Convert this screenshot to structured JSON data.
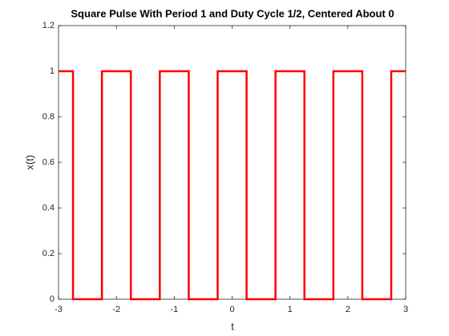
{
  "chart_data": {
    "type": "line",
    "title": "Square Pulse With Period 1 and Duty Cycle 1/2, Centered About 0",
    "x_label": "t",
    "y_label": "x(t)",
    "x": [
      -3,
      -2.75,
      -2.75,
      -2.25,
      -2.25,
      -1.75,
      -1.75,
      -1.25,
      -1.25,
      -0.75,
      -0.75,
      -0.25,
      -0.25,
      0.25,
      0.25,
      0.75,
      0.75,
      1.25,
      1.25,
      1.75,
      1.75,
      2.25,
      2.25,
      2.75,
      2.75,
      3
    ],
    "series": [
      {
        "color": "#ff0000",
        "values": [
          1,
          1,
          0,
          0,
          1,
          1,
          0,
          0,
          1,
          1,
          0,
          0,
          1,
          1,
          0,
          0,
          1,
          1,
          0,
          0,
          1,
          1,
          0,
          0,
          1,
          1
        ]
      }
    ],
    "xlim": [
      -3,
      3
    ],
    "xticks": [
      -3,
      -2,
      -1,
      0,
      1,
      2,
      3
    ],
    "ylim": [
      0,
      1.2
    ],
    "yticks": [
      0,
      0.2,
      0.4,
      0.6,
      0.8,
      1,
      1.2
    ],
    "grid": false
  }
}
